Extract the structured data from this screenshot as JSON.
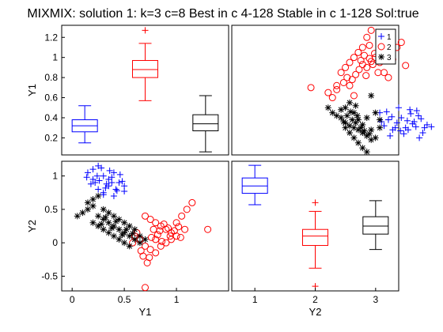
{
  "figure": {
    "title": "MIXMIX: solution 1: k=3 c=8 Best in c 4-128 Stable in c 1-128 Sol:true"
  },
  "colors": {
    "1": "#0000ff",
    "2": "#ff0000",
    "3": "#000000"
  },
  "legend": {
    "position": "top-right",
    "items": [
      {
        "label": "1",
        "marker": "plus",
        "color": "#0000ff"
      },
      {
        "label": "2",
        "marker": "circle",
        "color": "#ff0000"
      },
      {
        "label": "3",
        "marker": "asterisk",
        "color": "#000000"
      }
    ]
  },
  "chart_data": [
    {
      "panel": "top-left",
      "type": "box",
      "ylabel": "Y1",
      "ylim": [
        0.03,
        1.32
      ],
      "yticks": [
        0.2,
        0.4,
        0.6,
        0.8,
        1,
        1.2
      ],
      "ytick_labels": [
        "0.2",
        "0.4",
        "0.6",
        "0.8",
        "1",
        "1.2"
      ],
      "grid": false,
      "boxes": [
        {
          "group": "1",
          "whisker_low": 0.15,
          "q1": 0.26,
          "median": 0.32,
          "q3": 0.38,
          "whisker_high": 0.52,
          "outliers": []
        },
        {
          "group": "2",
          "whisker_low": 0.57,
          "q1": 0.8,
          "median": 0.88,
          "q3": 0.97,
          "whisker_high": 1.14,
          "outliers": [
            1.27
          ]
        },
        {
          "group": "3",
          "whisker_low": 0.06,
          "q1": 0.27,
          "median": 0.34,
          "q3": 0.43,
          "whisker_high": 0.62,
          "outliers": []
        }
      ]
    },
    {
      "panel": "top-right",
      "type": "scatter",
      "grid": false,
      "legend": "top-right",
      "series": [
        {
          "group": "1",
          "marker": "plus",
          "points": [
            [
              1.0,
              0.45
            ],
            [
              1.05,
              0.32
            ],
            [
              1.1,
              0.38
            ],
            [
              1.15,
              0.28
            ],
            [
              1.2,
              0.35
            ],
            [
              1.25,
              0.4
            ],
            [
              1.3,
              0.3
            ],
            [
              1.35,
              0.48
            ],
            [
              1.4,
              0.36
            ],
            [
              1.45,
              0.42
            ],
            [
              1.5,
              0.25
            ],
            [
              1.55,
              0.33
            ],
            [
              1.6,
              0.31
            ],
            [
              1.08,
              0.46
            ],
            [
              1.12,
              0.22
            ],
            [
              1.22,
              0.5
            ],
            [
              1.28,
              0.24
            ],
            [
              1.33,
              0.28
            ],
            [
              1.38,
              0.34
            ],
            [
              1.43,
              0.47
            ],
            [
              1.48,
              0.39
            ],
            [
              1.18,
              0.3
            ],
            [
              1.02,
              0.36
            ],
            [
              1.32,
              0.37
            ],
            [
              1.46,
              0.2
            ],
            [
              1.24,
              0.27
            ],
            [
              1.36,
              0.44
            ],
            [
              1.42,
              0.31
            ],
            [
              1.52,
              0.3
            ],
            [
              1.14,
              0.41
            ]
          ]
        },
        {
          "group": "2",
          "marker": "circle",
          "points": [
            [
              0.2,
              0.7
            ],
            [
              0.4,
              0.65
            ],
            [
              0.45,
              0.6
            ],
            [
              0.5,
              0.72
            ],
            [
              0.55,
              0.85
            ],
            [
              0.6,
              0.9
            ],
            [
              0.65,
              0.95
            ],
            [
              0.7,
              1.0
            ],
            [
              0.75,
              1.05
            ],
            [
              0.8,
              1.1
            ],
            [
              0.85,
              1.2
            ],
            [
              0.9,
              1.27
            ],
            [
              0.95,
              1.0
            ],
            [
              1.0,
              0.95
            ],
            [
              1.05,
              0.85
            ],
            [
              1.1,
              0.8
            ],
            [
              1.15,
              0.98
            ],
            [
              1.2,
              1.1
            ],
            [
              1.25,
              1.15
            ],
            [
              1.3,
              0.92
            ],
            [
              0.68,
              0.78
            ],
            [
              0.72,
              0.83
            ],
            [
              0.78,
              0.97
            ],
            [
              0.82,
              1.02
            ],
            [
              0.88,
              0.99
            ],
            [
              0.92,
              0.93
            ],
            [
              0.98,
              0.85
            ],
            [
              0.62,
              0.8
            ],
            [
              0.58,
              0.75
            ],
            [
              0.85,
              0.9
            ],
            [
              0.9,
              0.96
            ],
            [
              0.94,
              1.04
            ],
            [
              0.76,
              0.88
            ],
            [
              0.84,
              0.82
            ],
            [
              0.5,
              0.68
            ],
            [
              0.65,
              0.72
            ],
            [
              1.08,
              1.0
            ],
            [
              0.7,
              0.62
            ],
            [
              0.8,
              0.93
            ],
            [
              0.88,
              1.12
            ]
          ]
        },
        {
          "group": "3",
          "marker": "asterisk",
          "points": [
            [
              0.4,
              0.5
            ],
            [
              0.45,
              0.45
            ],
            [
              0.5,
              0.42
            ],
            [
              0.55,
              0.4
            ],
            [
              0.6,
              0.35
            ],
            [
              0.65,
              0.32
            ],
            [
              0.7,
              0.3
            ],
            [
              0.75,
              0.28
            ],
            [
              0.8,
              0.25
            ],
            [
              0.85,
              0.22
            ],
            [
              0.9,
              0.18
            ],
            [
              0.95,
              0.2
            ],
            [
              1.0,
              0.3
            ],
            [
              0.6,
              0.5
            ],
            [
              0.65,
              0.55
            ],
            [
              0.7,
              0.45
            ],
            [
              0.75,
              0.38
            ],
            [
              0.8,
              0.33
            ],
            [
              0.85,
              0.4
            ],
            [
              0.9,
              0.28
            ],
            [
              0.55,
              0.48
            ],
            [
              0.62,
              0.42
            ],
            [
              0.68,
              0.38
            ],
            [
              0.72,
              0.35
            ],
            [
              0.78,
              0.3
            ],
            [
              0.82,
              0.27
            ],
            [
              0.88,
              0.24
            ],
            [
              0.6,
              0.3
            ],
            [
              0.65,
              0.25
            ],
            [
              0.7,
              0.2
            ],
            [
              0.75,
              0.15
            ],
            [
              0.8,
              0.1
            ],
            [
              0.85,
              0.06
            ],
            [
              0.72,
              0.52
            ],
            [
              0.9,
              0.62
            ],
            [
              0.95,
              0.45
            ],
            [
              1.0,
              0.38
            ],
            [
              0.58,
              0.36
            ],
            [
              0.66,
              0.46
            ],
            [
              0.74,
              0.42
            ]
          ]
        }
      ]
    },
    {
      "panel": "bottom-left",
      "type": "scatter",
      "xlabel": "Y1",
      "ylabel": "Y2",
      "xlim": [
        -0.1,
        1.5
      ],
      "ylim": [
        -0.72,
        1.22
      ],
      "xticks": [
        0,
        0.5,
        1
      ],
      "xtick_labels": [
        "0",
        "0.5",
        "1"
      ],
      "yticks": [
        -0.5,
        0,
        0.5,
        1
      ],
      "ytick_labels": [
        "-0.5",
        "0",
        "0.5",
        "1"
      ],
      "grid": false,
      "series": [
        {
          "group": "1",
          "marker": "plus",
          "points": [
            [
              0.15,
              1.05
            ],
            [
              0.2,
              1.1
            ],
            [
              0.25,
              1.15
            ],
            [
              0.3,
              1.0
            ],
            [
              0.35,
              0.95
            ],
            [
              0.4,
              1.05
            ],
            [
              0.45,
              0.9
            ],
            [
              0.5,
              0.85
            ],
            [
              0.2,
              0.95
            ],
            [
              0.25,
              0.8
            ],
            [
              0.3,
              0.75
            ],
            [
              0.35,
              0.85
            ],
            [
              0.4,
              0.7
            ],
            [
              0.22,
              0.9
            ],
            [
              0.28,
              1.12
            ],
            [
              0.33,
              0.88
            ],
            [
              0.38,
              0.98
            ],
            [
              0.43,
              0.78
            ],
            [
              0.48,
              0.92
            ],
            [
              0.3,
              0.72
            ],
            [
              0.24,
              1.0
            ],
            [
              0.36,
              1.08
            ],
            [
              0.42,
              0.8
            ],
            [
              0.18,
              0.88
            ],
            [
              0.32,
              0.82
            ],
            [
              0.26,
              0.93
            ],
            [
              0.46,
              1.02
            ],
            [
              0.5,
              0.77
            ],
            [
              0.14,
              0.98
            ],
            [
              0.38,
              0.9
            ]
          ]
        },
        {
          "group": "2",
          "marker": "circle",
          "points": [
            [
              0.7,
              0.4
            ],
            [
              0.75,
              0.35
            ],
            [
              0.8,
              0.3
            ],
            [
              0.85,
              0.25
            ],
            [
              0.9,
              0.2
            ],
            [
              0.95,
              0.15
            ],
            [
              1.0,
              0.3
            ],
            [
              1.05,
              0.4
            ],
            [
              1.1,
              0.5
            ],
            [
              1.15,
              0.6
            ],
            [
              1.3,
              0.2
            ],
            [
              0.6,
              0.1
            ],
            [
              0.65,
              0.05
            ],
            [
              0.7,
              -0.05
            ],
            [
              0.75,
              -0.1
            ],
            [
              0.8,
              -0.15
            ],
            [
              0.85,
              -0.05
            ],
            [
              0.9,
              0.0
            ],
            [
              0.95,
              0.05
            ],
            [
              1.0,
              0.1
            ],
            [
              0.68,
              -0.2
            ],
            [
              0.72,
              -0.3
            ],
            [
              0.7,
              -0.67
            ],
            [
              0.62,
              0.15
            ],
            [
              0.78,
              0.2
            ],
            [
              0.82,
              0.12
            ],
            [
              0.88,
              0.28
            ],
            [
              0.92,
              0.22
            ],
            [
              0.98,
              0.18
            ],
            [
              1.04,
              0.08
            ],
            [
              0.76,
              0.08
            ],
            [
              0.84,
              0.18
            ],
            [
              0.58,
              0.0
            ],
            [
              0.66,
              -0.12
            ],
            [
              1.02,
              0.24
            ],
            [
              1.08,
              0.2
            ],
            [
              0.94,
              0.1
            ],
            [
              0.86,
              0.02
            ],
            [
              0.74,
              -0.22
            ],
            [
              0.8,
              0.05
            ]
          ]
        },
        {
          "group": "3",
          "marker": "asterisk",
          "points": [
            [
              0.05,
              0.4
            ],
            [
              0.1,
              0.45
            ],
            [
              0.15,
              0.5
            ],
            [
              0.2,
              0.55
            ],
            [
              0.25,
              0.4
            ],
            [
              0.3,
              0.35
            ],
            [
              0.35,
              0.3
            ],
            [
              0.4,
              0.25
            ],
            [
              0.45,
              0.2
            ],
            [
              0.5,
              0.15
            ],
            [
              0.55,
              0.1
            ],
            [
              0.6,
              0.05
            ],
            [
              0.65,
              0.0
            ],
            [
              0.2,
              0.3
            ],
            [
              0.25,
              0.25
            ],
            [
              0.3,
              0.2
            ],
            [
              0.35,
              0.15
            ],
            [
              0.4,
              0.1
            ],
            [
              0.45,
              0.05
            ],
            [
              0.5,
              0.0
            ],
            [
              0.55,
              -0.05
            ],
            [
              0.15,
              0.6
            ],
            [
              0.2,
              0.65
            ],
            [
              0.25,
              0.7
            ],
            [
              0.3,
              0.5
            ],
            [
              0.35,
              0.45
            ],
            [
              0.4,
              0.4
            ],
            [
              0.45,
              0.35
            ],
            [
              0.5,
              0.3
            ],
            [
              0.55,
              0.25
            ],
            [
              0.6,
              0.2
            ],
            [
              0.65,
              0.1
            ],
            [
              0.7,
              0.05
            ],
            [
              0.28,
              0.28
            ],
            [
              0.32,
              0.38
            ],
            [
              0.38,
              0.22
            ],
            [
              0.42,
              0.32
            ],
            [
              0.48,
              0.12
            ],
            [
              0.52,
              0.2
            ],
            [
              0.58,
              0.14
            ]
          ]
        }
      ]
    },
    {
      "panel": "bottom-right",
      "type": "box",
      "xlabel": "Y2",
      "xticks": [
        1,
        2,
        3
      ],
      "xtick_labels": [
        "1",
        "2",
        "3"
      ],
      "ylim": [
        -0.72,
        1.22
      ],
      "grid": false,
      "boxes": [
        {
          "group": "1",
          "whisker_low": 0.57,
          "q1": 0.74,
          "median": 0.85,
          "q3": 0.97,
          "whisker_high": 1.16,
          "outliers": []
        },
        {
          "group": "2",
          "whisker_low": -0.38,
          "q1": -0.04,
          "median": 0.1,
          "q3": 0.2,
          "whisker_high": 0.47,
          "outliers": [
            0.6,
            -0.65
          ]
        },
        {
          "group": "3",
          "whisker_low": -0.1,
          "q1": 0.13,
          "median": 0.25,
          "q3": 0.39,
          "whisker_high": 0.63,
          "outliers": []
        }
      ]
    }
  ]
}
